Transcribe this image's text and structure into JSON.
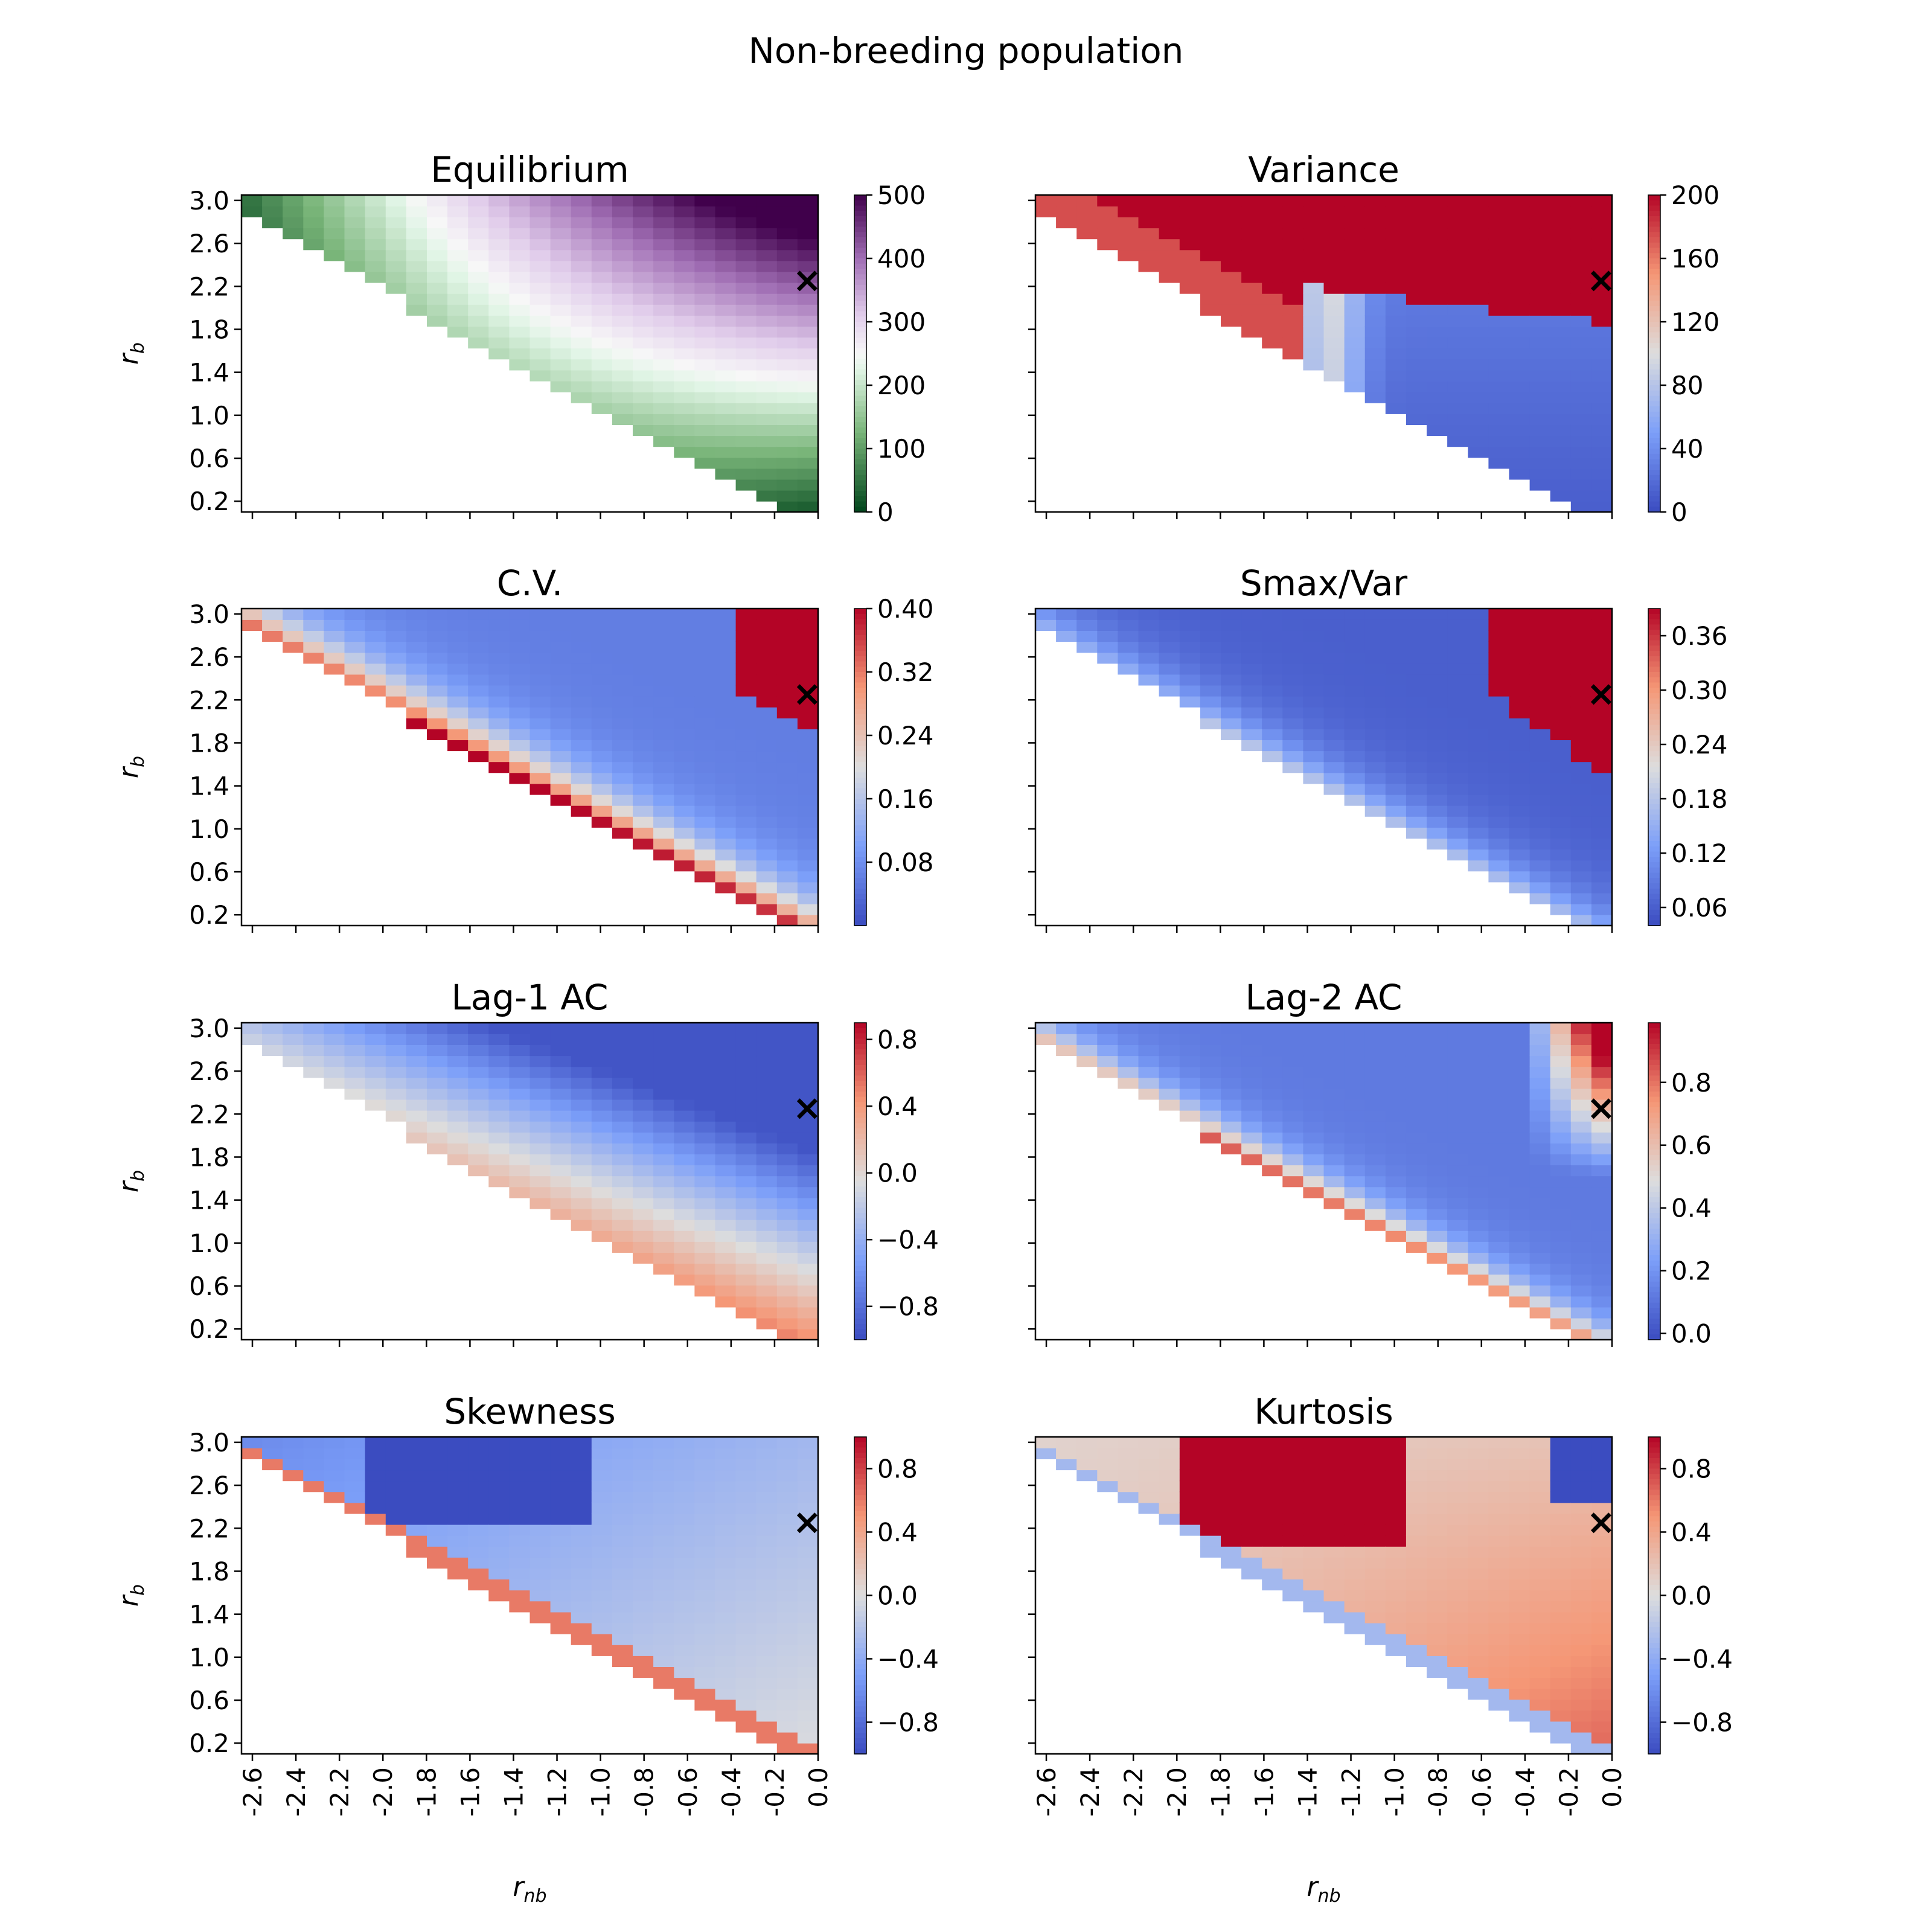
{
  "figure": {
    "title": "Non-breeding population",
    "xlabel": "r_nb",
    "ylabel": "r_b",
    "marker_symbol": "×",
    "marker_point": {
      "rnb": -0.05,
      "rb": 2.25
    },
    "grid_rnb_range": [
      -2.65,
      0.0
    ],
    "grid_rb_range": [
      0.1,
      3.05
    ]
  },
  "chart_data": [
    {
      "type": "heatmap",
      "title": "Equilibrium",
      "cmap": "PRGn_r",
      "vmin": 0,
      "vmax": 500,
      "cbar_ticks": [
        "0",
        "100",
        "200",
        "300",
        "400",
        "500"
      ],
      "cbar_tick_values": [
        0,
        100,
        200,
        300,
        400,
        500
      ],
      "xticks": [
        "-2.6",
        "-2.4",
        "-2.2",
        "-2.0",
        "-1.8",
        "-1.6",
        "-1.4",
        "-1.2",
        "-1.0",
        "-0.8",
        "-0.6",
        "-0.4",
        "-0.2",
        "0.0"
      ],
      "yticks": [
        "3.0",
        "2.6",
        "2.2",
        "1.8",
        "1.4",
        "1.0",
        "0.6",
        "0.2"
      ],
      "ylabel": "r_b",
      "xlabel": ""
    },
    {
      "type": "heatmap",
      "title": "Variance",
      "cmap": "coolwarm",
      "vmin": 0,
      "vmax": 200,
      "cbar_ticks": [
        "0",
        "40",
        "80",
        "120",
        "160",
        "200"
      ],
      "cbar_tick_values": [
        0,
        40,
        80,
        120,
        160,
        200
      ],
      "xticks": [
        "-2.6",
        "-2.4",
        "-2.2",
        "-2.0",
        "-1.8",
        "-1.6",
        "-1.4",
        "-1.2",
        "-1.0",
        "-0.8",
        "-0.6",
        "-0.4",
        "-0.2",
        "0.0"
      ],
      "yticks": [],
      "ylabel": "",
      "xlabel": ""
    },
    {
      "type": "heatmap",
      "title": "C.V.",
      "cmap": "coolwarm",
      "vmin": 0.0,
      "vmax": 0.4,
      "cbar_ticks": [
        "0.08",
        "0.16",
        "0.24",
        "0.32",
        "0.40"
      ],
      "cbar_tick_values": [
        0.08,
        0.16,
        0.24,
        0.32,
        0.4
      ],
      "xticks": [
        "-2.6",
        "-2.4",
        "-2.2",
        "-2.0",
        "-1.8",
        "-1.6",
        "-1.4",
        "-1.2",
        "-1.0",
        "-0.8",
        "-0.6",
        "-0.4",
        "-0.2",
        "0.0"
      ],
      "yticks": [
        "3.0",
        "2.6",
        "2.2",
        "1.8",
        "1.4",
        "1.0",
        "0.6",
        "0.2"
      ],
      "ylabel": "r_b",
      "xlabel": ""
    },
    {
      "type": "heatmap",
      "title": "Smax/Var",
      "cmap": "coolwarm",
      "vmin": 0.04,
      "vmax": 0.39,
      "cbar_ticks": [
        "0.06",
        "0.12",
        "0.18",
        "0.24",
        "0.30",
        "0.36"
      ],
      "cbar_tick_values": [
        0.06,
        0.12,
        0.18,
        0.24,
        0.3,
        0.36
      ],
      "xticks": [
        "-2.6",
        "-2.4",
        "-2.2",
        "-2.0",
        "-1.8",
        "-1.6",
        "-1.4",
        "-1.2",
        "-1.0",
        "-0.8",
        "-0.6",
        "-0.4",
        "-0.2",
        "0.0"
      ],
      "yticks": [],
      "ylabel": "",
      "xlabel": ""
    },
    {
      "type": "heatmap",
      "title": "Lag-1 AC",
      "cmap": "coolwarm",
      "vmin": -1.0,
      "vmax": 0.9,
      "cbar_ticks": [
        "−0.8",
        "−0.4",
        "0.0",
        "0.4",
        "0.8"
      ],
      "cbar_tick_values": [
        -0.8,
        -0.4,
        0.0,
        0.4,
        0.8
      ],
      "xticks": [
        "-2.6",
        "-2.4",
        "-2.2",
        "-2.0",
        "-1.8",
        "-1.6",
        "-1.4",
        "-1.2",
        "-1.0",
        "-0.8",
        "-0.6",
        "-0.4",
        "-0.2",
        "0.0"
      ],
      "yticks": [
        "3.0",
        "2.6",
        "2.2",
        "1.8",
        "1.4",
        "1.0",
        "0.6",
        "0.2"
      ],
      "ylabel": "r_b",
      "xlabel": ""
    },
    {
      "type": "heatmap",
      "title": "Lag-2 AC",
      "cmap": "coolwarm",
      "vmin": -0.02,
      "vmax": 0.99,
      "cbar_ticks": [
        "0.0",
        "0.2",
        "0.4",
        "0.6",
        "0.8"
      ],
      "cbar_tick_values": [
        0.0,
        0.2,
        0.4,
        0.6,
        0.8
      ],
      "xticks": [
        "-2.6",
        "-2.4",
        "-2.2",
        "-2.0",
        "-1.8",
        "-1.6",
        "-1.4",
        "-1.2",
        "-1.0",
        "-0.8",
        "-0.6",
        "-0.4",
        "-0.2",
        "0.0"
      ],
      "yticks": [],
      "ylabel": "",
      "xlabel": ""
    },
    {
      "type": "heatmap",
      "title": "Skewness",
      "cmap": "coolwarm",
      "vmin": -1.0,
      "vmax": 1.0,
      "cbar_ticks": [
        "−0.8",
        "−0.4",
        "0.0",
        "0.4",
        "0.8"
      ],
      "cbar_tick_values": [
        -0.8,
        -0.4,
        0.0,
        0.4,
        0.8
      ],
      "xticks": [
        "-2.6",
        "-2.4",
        "-2.2",
        "-2.0",
        "-1.8",
        "-1.6",
        "-1.4",
        "-1.2",
        "-1.0",
        "-0.8",
        "-0.6",
        "-0.4",
        "-0.2",
        "0.0"
      ],
      "yticks": [
        "3.0",
        "2.6",
        "2.2",
        "1.8",
        "1.4",
        "1.0",
        "0.6",
        "0.2"
      ],
      "ylabel": "r_b",
      "xlabel": "r_nb"
    },
    {
      "type": "heatmap",
      "title": "Kurtosis",
      "cmap": "coolwarm",
      "vmin": -1.0,
      "vmax": 1.0,
      "cbar_ticks": [
        "−0.8",
        "−0.4",
        "0.0",
        "0.4",
        "0.8"
      ],
      "cbar_tick_values": [
        -0.8,
        -0.4,
        0.0,
        0.4,
        0.8
      ],
      "xticks": [
        "-2.6",
        "-2.4",
        "-2.2",
        "-2.0",
        "-1.8",
        "-1.6",
        "-1.4",
        "-1.2",
        "-1.0",
        "-0.8",
        "-0.6",
        "-0.4",
        "-0.2",
        "0.0"
      ],
      "yticks": [],
      "ylabel": "",
      "xlabel": "r_nb"
    }
  ]
}
